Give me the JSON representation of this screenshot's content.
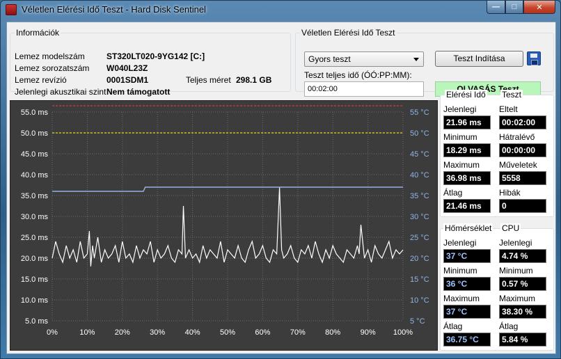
{
  "window": {
    "title": "Véletlen Elérési Idő Teszt - Hard Disk Sentinel",
    "min_label": "—",
    "max_label": "□",
    "close_label": "✕"
  },
  "info": {
    "legend": "Információk",
    "model_label": "Lemez modelszám",
    "model_value": "ST320LT020-9YG142 [C:]",
    "serial_label": "Lemez sorozatszám",
    "serial_value": "W040L23Z",
    "revision_label": "Lemez revízió",
    "revision_value": "0001SDM1",
    "size_label": "Teljes méret",
    "size_value": "298.1 GB",
    "acoustic_label": "Jelenlegi akusztikai szint",
    "acoustic_value": "Nem támogatott"
  },
  "test": {
    "legend": "Véletlen Elérési Idő Teszt",
    "mode_selected": "Gyors teszt",
    "duration_label": "Teszt teljes idő (ÓÓ:PP:MM):",
    "duration_value": "00:02:00",
    "start_label": "Teszt Indítása",
    "status_text": "OLVASÁS Teszt"
  },
  "stats": {
    "access": {
      "header": "Elérési Idő",
      "current_label": "Jelenlegi",
      "current_value": "21.96 ms",
      "min_label": "Minimum",
      "min_value": "18.29 ms",
      "max_label": "Maximum",
      "max_value": "36.98 ms",
      "avg_label": "Átlag",
      "avg_value": "21.46 ms"
    },
    "test": {
      "header": "Teszt",
      "elapsed_label": "Eltelt",
      "elapsed_value": "00:02:00",
      "remaining_label": "Hátralévő",
      "remaining_value": "00:00:00",
      "ops_label": "Műveletek",
      "ops_value": "5558",
      "errors_label": "Hibák",
      "errors_value": "0"
    },
    "temp": {
      "header": "Hőmérséklet",
      "current_label": "Jelenlegi",
      "current_value": "37 °C",
      "min_label": "Minimum",
      "min_value": "36 °C",
      "max_label": "Maximum",
      "max_value": "37 °C",
      "avg_label": "Átlag",
      "avg_value": "36.75 °C"
    },
    "cpu": {
      "header": "CPU",
      "current_label": "Jelenlegi",
      "current_value": "4.74 %",
      "min_label": "Minimum",
      "min_value": "0.57 %",
      "max_label": "Maximum",
      "max_value": "38.30 %",
      "avg_label": "Átlag",
      "avg_value": "5.84 %"
    }
  },
  "chart_data": {
    "type": "line",
    "y_left_ticks": [
      "55.0 ms",
      "50.0 ms",
      "45.0 ms",
      "40.0 ms",
      "35.0 ms",
      "30.0 ms",
      "25.0 ms",
      "20.0 ms",
      "15.0 ms",
      "10.0 ms",
      "5.0 ms"
    ],
    "y_right_ticks": [
      "55 °C",
      "50 °C",
      "45 °C",
      "40 °C",
      "35 °C",
      "30 °C",
      "25 °C",
      "20 °C",
      "15 °C",
      "10 °C",
      "5 °C"
    ],
    "x_ticks": [
      "0%",
      "10%",
      "20%",
      "30%",
      "40%",
      "50%",
      "60%",
      "70%",
      "80%",
      "90%",
      "100%"
    ],
    "ylim": [
      5,
      55
    ],
    "xlim": [
      0,
      100
    ],
    "grid": true,
    "reference_lines": [
      {
        "y": 56.5,
        "color": "#d83a3a"
      },
      {
        "y": 50,
        "color": "#e8d820"
      }
    ],
    "series": [
      {
        "color": "#ffffff",
        "x": [
          0,
          1,
          2,
          3,
          4,
          5,
          6,
          7,
          8,
          9,
          10,
          10.6,
          11,
          11.5,
          12,
          13,
          14,
          15,
          16,
          17,
          18,
          19,
          20,
          21,
          22,
          23,
          24,
          25,
          26,
          27,
          28,
          29,
          30,
          31,
          32,
          33,
          34,
          35,
          36,
          37,
          37.4,
          38,
          39,
          40,
          41,
          42,
          43,
          44,
          45,
          46,
          47,
          48,
          49,
          50,
          51,
          52,
          53,
          54,
          55,
          56,
          57,
          58,
          59,
          60,
          61,
          62,
          63,
          64,
          64.8,
          65.4,
          66,
          67,
          68,
          69,
          70,
          71,
          72,
          73,
          74,
          75,
          76,
          77,
          78,
          79,
          80,
          81,
          82,
          83,
          84,
          85,
          86,
          87,
          87.5,
          88,
          89,
          90,
          91,
          92,
          93,
          94,
          95,
          96,
          97,
          98,
          99,
          100
        ],
        "y": [
          20,
          24,
          21,
          19,
          23,
          20,
          22,
          19,
          24,
          20,
          21,
          26.5,
          18,
          23,
          20,
          25,
          19,
          22,
          20,
          21,
          23,
          19,
          24,
          20,
          21,
          19,
          23,
          20,
          22,
          21,
          24,
          19,
          22,
          20,
          21,
          23,
          20,
          19,
          22,
          21,
          32.5,
          20,
          22,
          20,
          21,
          19,
          23,
          20,
          22,
          21,
          20,
          24,
          19,
          22,
          21,
          20,
          23,
          20,
          19,
          22,
          24,
          20,
          21,
          23,
          20,
          19,
          22,
          21,
          37,
          22,
          20,
          21,
          23,
          20,
          19,
          22,
          21,
          23,
          20,
          24,
          21,
          19,
          22,
          20,
          23,
          21,
          20,
          19,
          22,
          21,
          20,
          23,
          21,
          28,
          20,
          22,
          19,
          23,
          21,
          20,
          22,
          24,
          20,
          22,
          21,
          21.96
        ]
      },
      {
        "color": "#8fb4e8",
        "x": [
          0,
          26,
          26.5,
          100
        ],
        "y": [
          36,
          36,
          37,
          37
        ]
      }
    ]
  }
}
